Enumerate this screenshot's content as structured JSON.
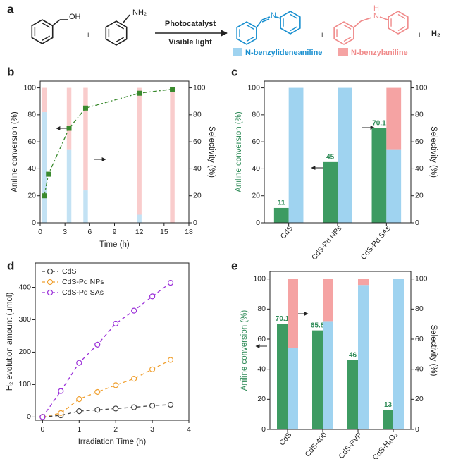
{
  "scheme": {
    "panel": "a",
    "reactant1_label": "OH",
    "reactant2_label": "NH₂",
    "pluses": [
      "+",
      "+",
      "+"
    ],
    "above_arrow": "Photocatalyst",
    "below_arrow": "Visible light",
    "product1_label": "N",
    "product2_labels": [
      "H",
      "N"
    ],
    "byproduct": "H₂",
    "legend": [
      {
        "label": "N-benzylideneaniline",
        "color": "#9fd3f0"
      },
      {
        "label": "N-benzylaniline",
        "color": "#f5a3a3"
      }
    ]
  },
  "chart_data": [
    {
      "panel": "b",
      "type": "combo",
      "xlabel": "Time (h)",
      "ylabel": "Aniline conversion (%)",
      "y2label": "Selectivity (%)",
      "xlim": [
        0,
        18
      ],
      "xticks": [
        0,
        3,
        6,
        9,
        12,
        15,
        18
      ],
      "ylim": [
        0,
        105
      ],
      "yticks": [
        0,
        20,
        40,
        60,
        80,
        100
      ],
      "y2lim": [
        0,
        105
      ],
      "y2ticks": [
        0,
        20,
        40,
        60,
        80,
        100
      ],
      "x": [
        0.5,
        3.5,
        5.5,
        12,
        16
      ],
      "series": [
        {
          "type": "bar",
          "axis": "y2",
          "color": "#c3e2f4",
          "values": [
            82,
            54,
            24,
            6,
            0
          ]
        },
        {
          "type": "bar",
          "axis": "y2",
          "color": "#f9cccc",
          "values": [
            18,
            46,
            76,
            94,
            100
          ]
        },
        {
          "type": "line",
          "color": "#3a8a2e",
          "x": [
            0.5,
            1,
            3.5,
            5.5,
            12,
            16
          ],
          "values": [
            20,
            36,
            70,
            85,
            96,
            99
          ]
        }
      ]
    },
    {
      "panel": "c",
      "type": "bar",
      "ylabel": "Aniline conversion (%)",
      "ylabel_color": "#2e8b57",
      "y2label": "Selectivity (%)",
      "categories": [
        "CdS",
        "CdS-Pd NPs",
        "CdS-Pd SAs"
      ],
      "ylim": [
        0,
        105
      ],
      "yticks": [
        0,
        20,
        40,
        60,
        80,
        100
      ],
      "y2lim": [
        0,
        105
      ],
      "y2ticks": [
        0,
        20,
        40,
        60,
        80,
        100
      ],
      "data_labels": true,
      "series": [
        {
          "axis": "y",
          "color": "#3d9b62",
          "values": [
            11,
            45,
            70.1
          ]
        },
        {
          "axis": "y2",
          "color": "#9fd3f0",
          "values": [
            100,
            100,
            54
          ]
        },
        {
          "axis": "y2",
          "color": "#f5a3a3",
          "values": [
            0,
            0,
            46
          ]
        }
      ]
    },
    {
      "panel": "d",
      "type": "line",
      "xlabel": "Irradiation Time (h)",
      "ylabel": "H₂ evolution amount (μmol)",
      "xlim": [
        -0.2,
        4
      ],
      "xticks": [
        0,
        1,
        2,
        3,
        4
      ],
      "ylim": [
        -10,
        475
      ],
      "yticks": [
        0,
        100,
        200,
        300,
        400
      ],
      "legend": "upper left",
      "x": [
        0,
        0.5,
        1,
        1.5,
        2,
        2.5,
        3,
        3.5
      ],
      "series": [
        {
          "name": "CdS",
          "color": "#444444",
          "values": [
            0,
            5,
            18,
            22,
            26,
            30,
            35,
            38
          ]
        },
        {
          "name": "CdS-Pd NPs",
          "color": "#f0a030",
          "values": [
            0,
            12,
            55,
            77,
            98,
            118,
            147,
            176
          ]
        },
        {
          "name": "CdS-Pd SAs",
          "color": "#9b30d9",
          "values": [
            0,
            80,
            167,
            223,
            288,
            328,
            372,
            414
          ]
        }
      ]
    },
    {
      "panel": "e",
      "type": "bar",
      "ylabel": "Aniline conversion (%)",
      "ylabel_color": "#2e8b57",
      "y2label": "Selectivity (%)",
      "categories": [
        "CdS",
        "CdS-400",
        "CdS-PVP",
        "CdS-H₂O₂"
      ],
      "ylim": [
        0,
        105
      ],
      "yticks": [
        0,
        20,
        40,
        60,
        80,
        100
      ],
      "y2lim": [
        0,
        105
      ],
      "y2ticks": [
        0,
        20,
        40,
        60,
        80,
        100
      ],
      "data_labels": true,
      "series": [
        {
          "axis": "y",
          "color": "#3d9b62",
          "values": [
            70.1,
            65.8,
            46,
            13
          ]
        },
        {
          "axis": "y2",
          "color": "#9fd3f0",
          "values": [
            54,
            72,
            96,
            100
          ]
        },
        {
          "axis": "y2",
          "color": "#f5a3a3",
          "values": [
            46,
            28,
            4,
            0
          ]
        }
      ]
    }
  ]
}
